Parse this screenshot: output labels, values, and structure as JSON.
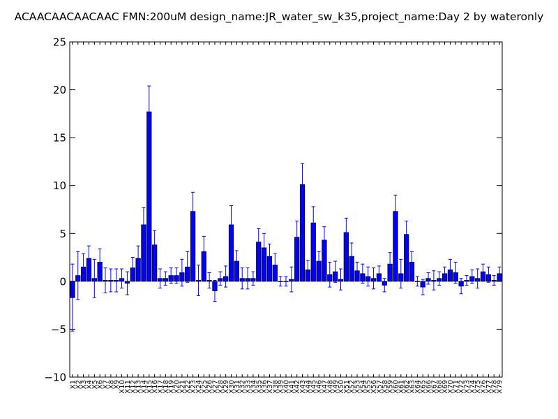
{
  "chart_data": {
    "type": "bar",
    "title": "ACAACAACAACAAC  FMN:200uM  design_name:JR_water_sw_k35,project_name:Day 2 by wateronly",
    "xlabel": "",
    "ylabel": "",
    "ylim": [
      -10,
      25
    ],
    "yticks": [
      -10,
      -5,
      0,
      5,
      10,
      15,
      20,
      25
    ],
    "ytick_labels": [
      "−10",
      "−5",
      "0",
      "5",
      "10",
      "15",
      "20",
      "25"
    ],
    "grid": false,
    "bar_color": "#0000ff",
    "error_color": "#0000ff",
    "categories": [
      "X1",
      "X2",
      "X3",
      "X4",
      "X5",
      "X6",
      "X7",
      "X8",
      "X9",
      "X10",
      "X11",
      "X12",
      "X13",
      "X14",
      "X15",
      "X16",
      "X17",
      "X18",
      "X19",
      "X20",
      "X21",
      "X22",
      "X23",
      "X24",
      "X25",
      "X26",
      "X27",
      "X28",
      "X29",
      "X30",
      "X31",
      "X32",
      "X33",
      "X34",
      "X35",
      "X36",
      "X37",
      "X38",
      "X39",
      "X40",
      "X41",
      "X42",
      "X43",
      "X44",
      "X45",
      "X46",
      "X47",
      "X48",
      "X49",
      "X50",
      "X51",
      "X52",
      "X53",
      "X54",
      "X55",
      "X56",
      "X57",
      "X58",
      "X59",
      "X60",
      "X61",
      "X62",
      "X63",
      "X64",
      "X65",
      "X66",
      "X67",
      "X68",
      "X69",
      "X70",
      "X71",
      "X72",
      "X73",
      "X74",
      "X75",
      "X76",
      "X77",
      "X78",
      "X79"
    ],
    "values": [
      -1.7,
      0.6,
      1.5,
      2.4,
      0.3,
      2.0,
      0.1,
      0.1,
      0.1,
      0.3,
      -0.2,
      1.4,
      2.4,
      5.9,
      17.7,
      3.8,
      0.3,
      0.3,
      0.6,
      0.6,
      0.9,
      1.5,
      7.3,
      0.1,
      3.1,
      0.1,
      -1.0,
      0.3,
      0.5,
      5.9,
      2.1,
      0.3,
      0.3,
      0.3,
      4.1,
      3.5,
      2.6,
      1.7,
      0.0,
      0.0,
      0.2,
      4.6,
      10.1,
      1.2,
      6.1,
      2.1,
      4.3,
      0.7,
      1.0,
      0.2,
      5.1,
      2.6,
      1.1,
      0.8,
      0.5,
      0.3,
      0.8,
      -0.4,
      1.8,
      7.3,
      0.8,
      4.9,
      2.0,
      0.0,
      -0.6,
      0.3,
      0.1,
      0.3,
      0.8,
      1.2,
      0.9,
      -0.5,
      0.1,
      0.5,
      0.3,
      1.0,
      0.7,
      0.1,
      0.8
    ],
    "errors": [
      3.5,
      2.5,
      1.4,
      1.3,
      2.0,
      1.4,
      1.3,
      1.2,
      1.2,
      1.0,
      1.2,
      1.1,
      1.3,
      1.8,
      2.7,
      1.5,
      1.0,
      0.7,
      0.8,
      0.8,
      1.4,
      1.6,
      2.0,
      1.6,
      1.6,
      0.8,
      1.1,
      0.7,
      1.1,
      2.0,
      1.1,
      1.1,
      1.1,
      0.7,
      1.4,
      1.5,
      1.3,
      1.2,
      0.5,
      0.5,
      1.3,
      1.7,
      2.2,
      1.0,
      1.7,
      1.0,
      1.4,
      1.3,
      1.1,
      1.1,
      1.5,
      1.4,
      0.9,
      1.0,
      1.0,
      1.1,
      0.8,
      0.7,
      1.2,
      1.7,
      1.5,
      1.4,
      1.1,
      0.5,
      0.8,
      0.6,
      1.0,
      0.7,
      0.7,
      1.1,
      1.1,
      0.8,
      0.5,
      0.7,
      1.0,
      0.8,
      0.8,
      0.5,
      0.7
    ]
  }
}
